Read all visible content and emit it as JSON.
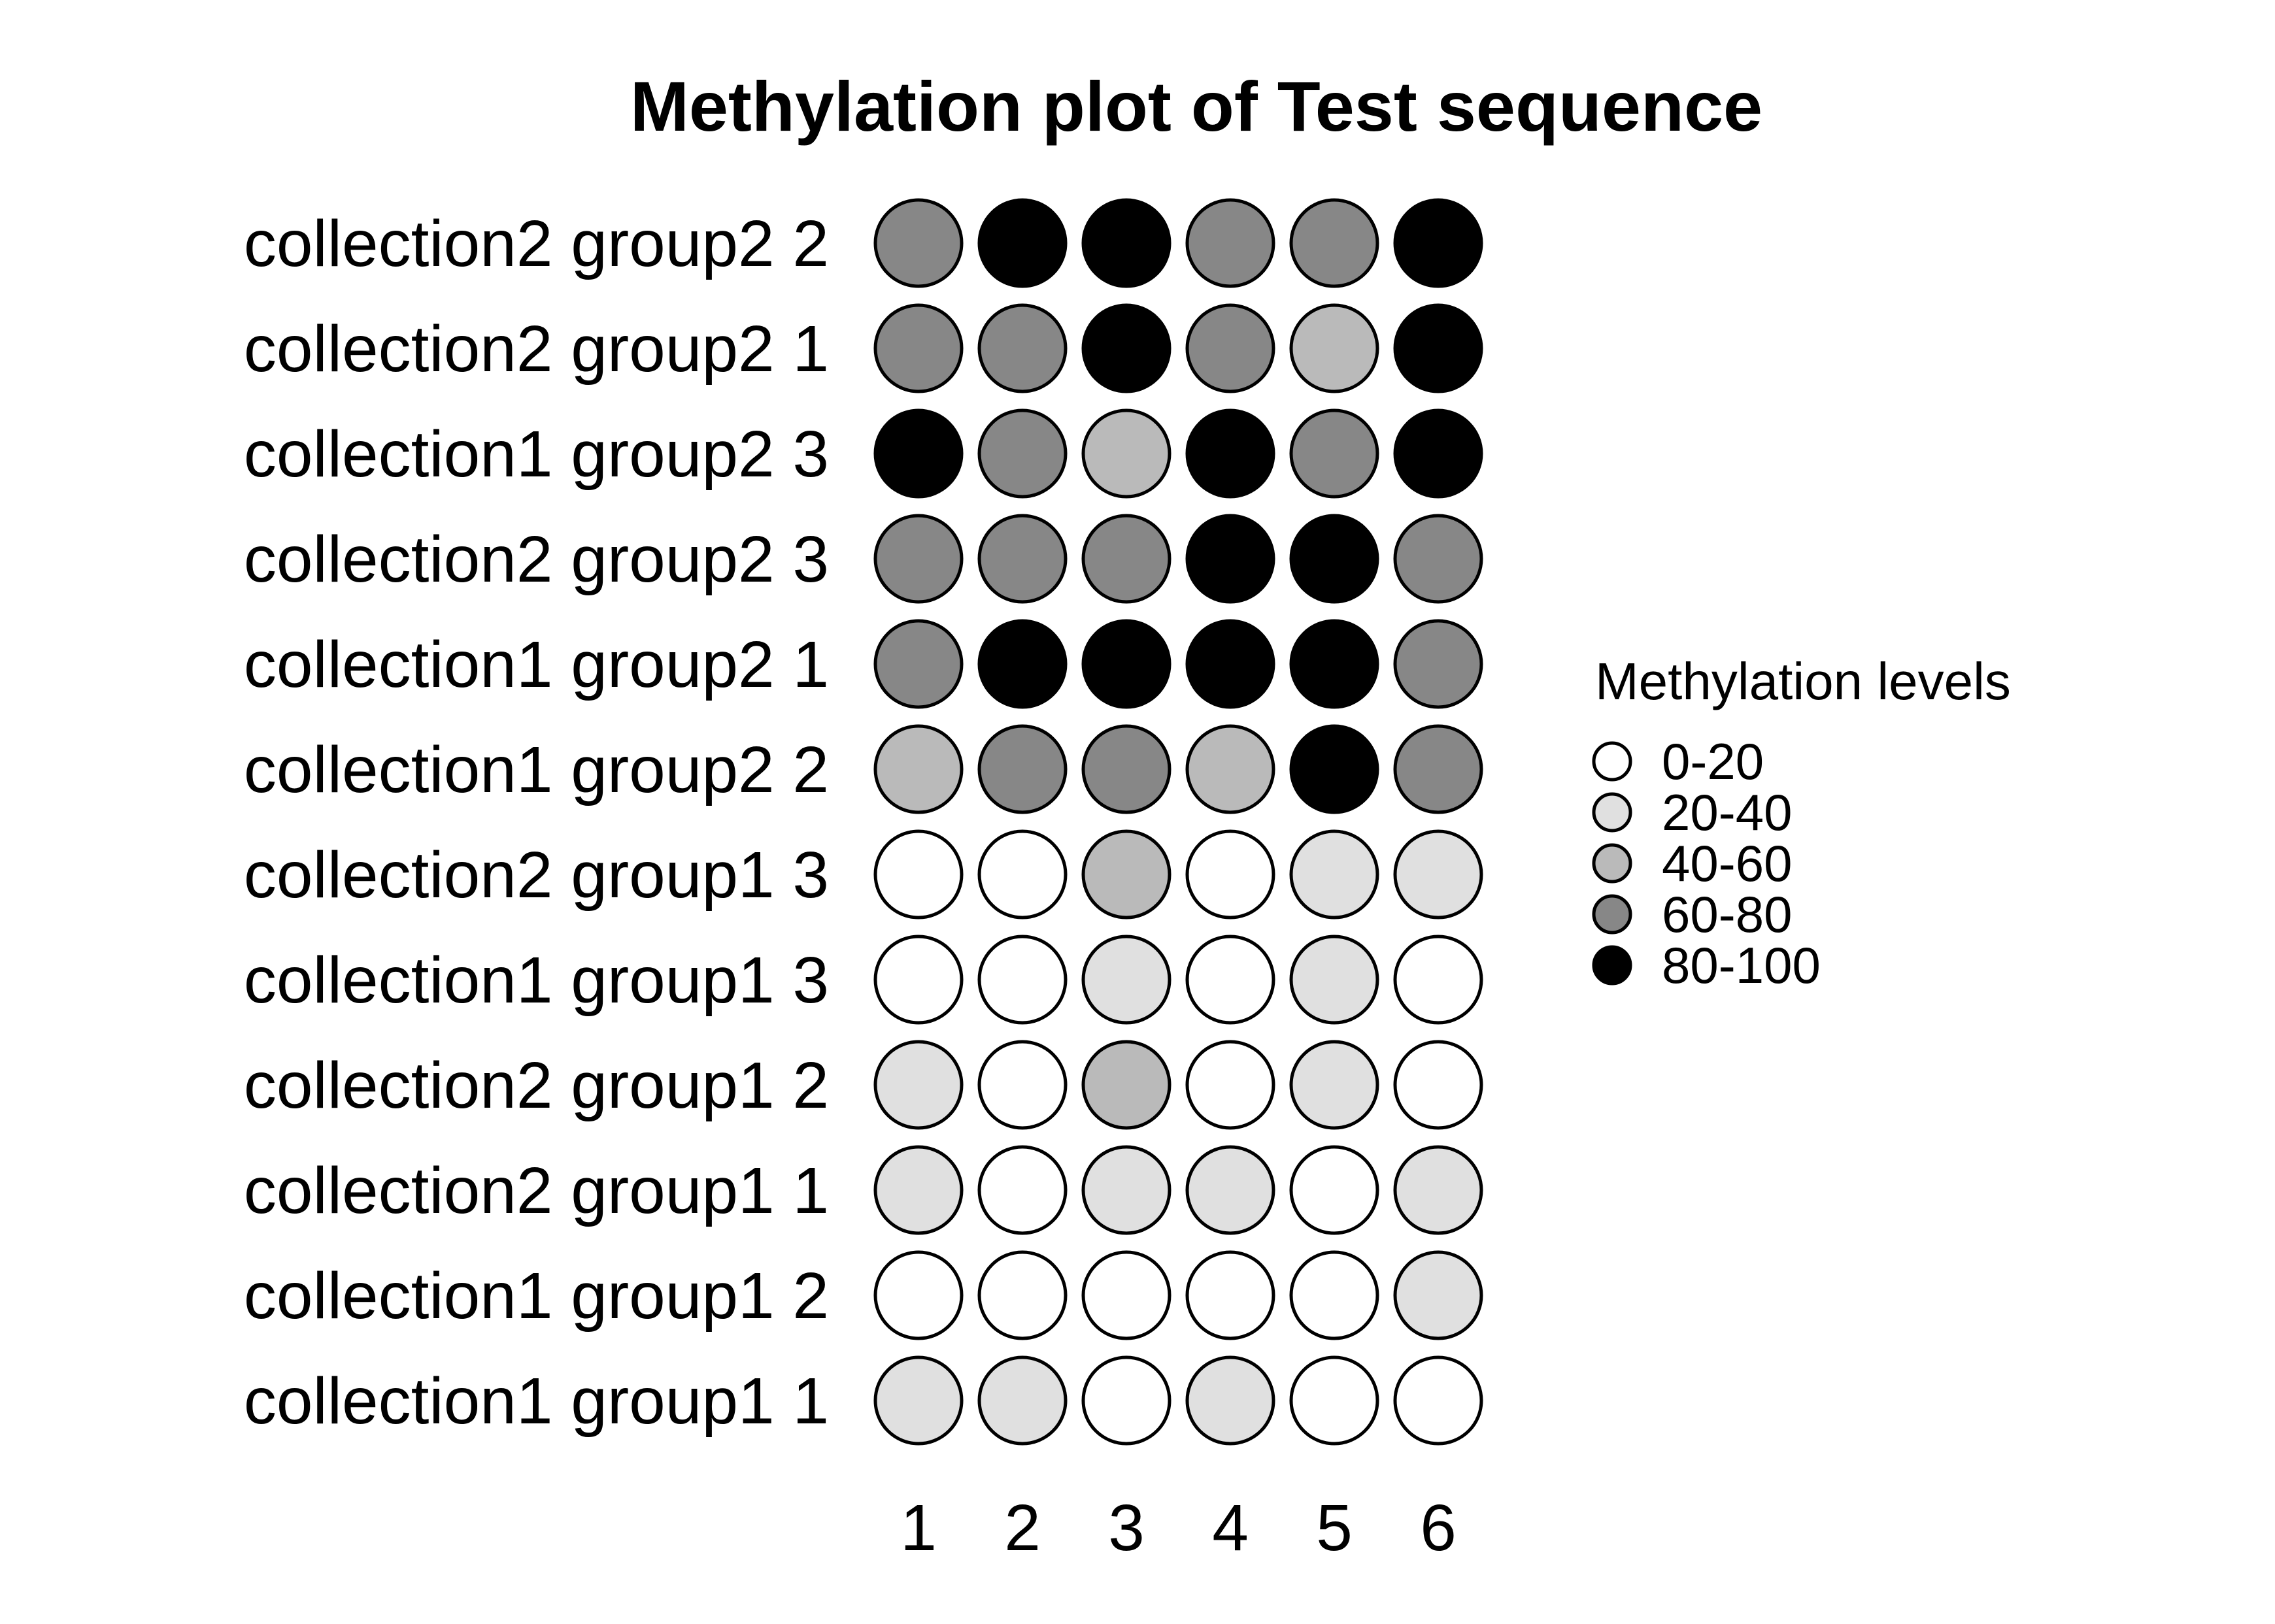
{
  "chart_data": {
    "type": "heatmap",
    "title": "Methylation plot of Test sequence",
    "xlabel": "",
    "ylabel": "",
    "columns": [
      "1",
      "2",
      "3",
      "4",
      "5",
      "6"
    ],
    "rows": [
      {
        "label": "collection2 group2 2",
        "levels": [
          "60-80",
          "80-100",
          "80-100",
          "60-80",
          "60-80",
          "80-100"
        ]
      },
      {
        "label": "collection2 group2 1",
        "levels": [
          "60-80",
          "60-80",
          "80-100",
          "60-80",
          "40-60",
          "80-100"
        ]
      },
      {
        "label": "collection1 group2 3",
        "levels": [
          "80-100",
          "60-80",
          "40-60",
          "80-100",
          "60-80",
          "80-100"
        ]
      },
      {
        "label": "collection2 group2 3",
        "levels": [
          "60-80",
          "60-80",
          "60-80",
          "80-100",
          "80-100",
          "60-80"
        ]
      },
      {
        "label": "collection1 group2 1",
        "levels": [
          "60-80",
          "80-100",
          "80-100",
          "80-100",
          "80-100",
          "60-80"
        ]
      },
      {
        "label": "collection1 group2 2",
        "levels": [
          "40-60",
          "60-80",
          "60-80",
          "40-60",
          "80-100",
          "60-80"
        ]
      },
      {
        "label": "collection2 group1 3",
        "levels": [
          "0-20",
          "0-20",
          "40-60",
          "0-20",
          "20-40",
          "20-40"
        ]
      },
      {
        "label": "collection1 group1 3",
        "levels": [
          "0-20",
          "0-20",
          "20-40",
          "0-20",
          "20-40",
          "0-20"
        ]
      },
      {
        "label": "collection2 group1 2",
        "levels": [
          "20-40",
          "0-20",
          "40-60",
          "0-20",
          "20-40",
          "0-20"
        ]
      },
      {
        "label": "collection2 group1 1",
        "levels": [
          "20-40",
          "0-20",
          "20-40",
          "20-40",
          "0-20",
          "20-40"
        ]
      },
      {
        "label": "collection1 group1 2",
        "levels": [
          "0-20",
          "0-20",
          "0-20",
          "0-20",
          "0-20",
          "20-40"
        ]
      },
      {
        "label": "collection1 group1 1",
        "levels": [
          "20-40",
          "20-40",
          "0-20",
          "20-40",
          "0-20",
          "0-20"
        ]
      }
    ],
    "legend": {
      "title": "Methylation levels",
      "placement": "right",
      "items": [
        {
          "label": "0-20",
          "color": "#ffffff"
        },
        {
          "label": "20-40",
          "color": "#e0e0e0"
        },
        {
          "label": "40-60",
          "color": "#bababa"
        },
        {
          "label": "60-80",
          "color": "#878787"
        },
        {
          "label": "80-100",
          "color": "#000000"
        }
      ]
    },
    "grid": false
  }
}
